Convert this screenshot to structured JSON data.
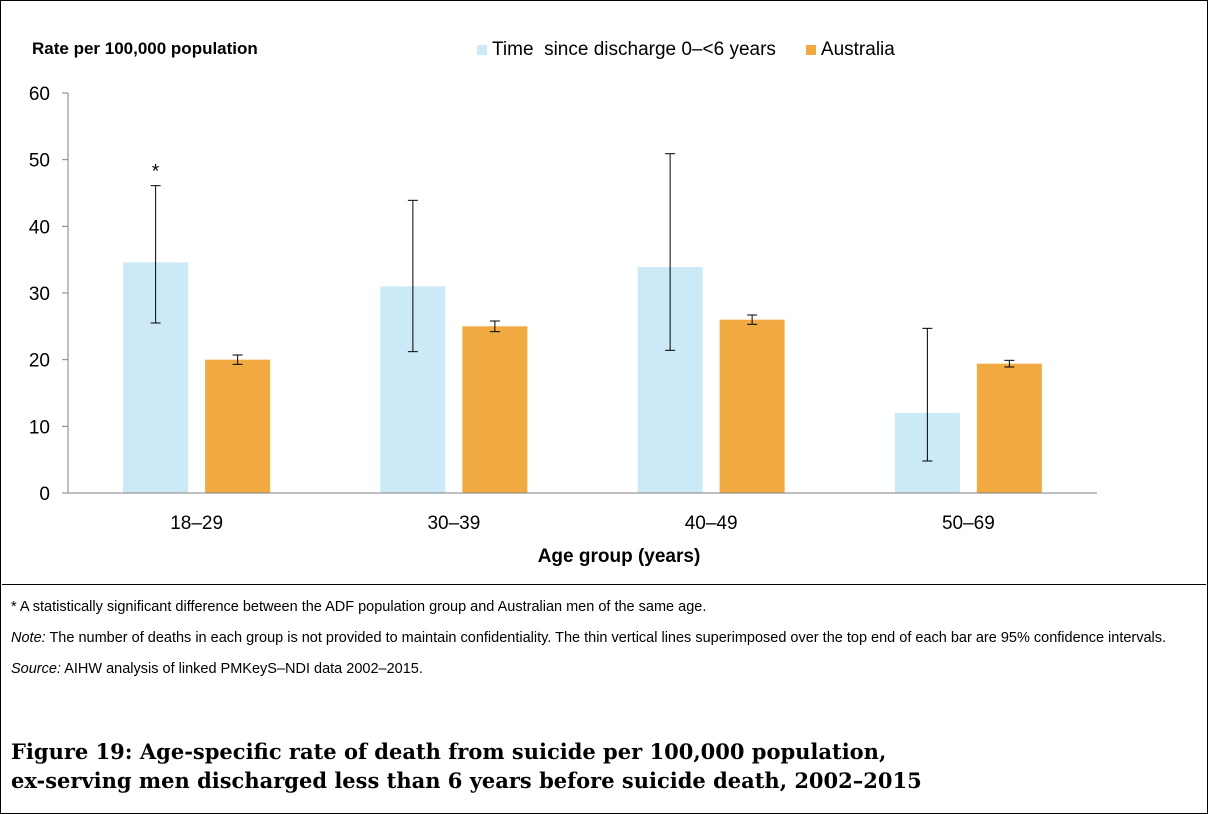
{
  "chart_data": {
    "type": "bar",
    "title": "",
    "ylabel": "Rate per 100,000 population",
    "xlabel": "Age group (years)",
    "ylim": [
      0,
      60
    ],
    "yticks": [
      0,
      10,
      20,
      30,
      40,
      50,
      60
    ],
    "grid": false,
    "legend_position": "top",
    "categories": [
      "18–29",
      "30–39",
      "40–49",
      "50–69"
    ],
    "series": [
      {
        "name": "Time  since discharge 0–<6 years",
        "color": "#cce9f7",
        "values": [
          34.6,
          31.0,
          33.9,
          12.0
        ],
        "ci_low": [
          25.5,
          21.2,
          21.4,
          4.8
        ],
        "ci_high": [
          46.1,
          43.9,
          50.9,
          24.7
        ]
      },
      {
        "name": "Australia",
        "color": "#f0aa41",
        "values": [
          20.0,
          25.0,
          26.0,
          19.4
        ],
        "ci_low": [
          19.3,
          24.2,
          25.3,
          18.9
        ],
        "ci_high": [
          20.7,
          25.8,
          26.7,
          19.9
        ]
      }
    ],
    "annotations": [
      {
        "category": "18–29",
        "series": 0,
        "text": "*"
      }
    ]
  },
  "notes": {
    "significance": "* A statistically significant difference between the ADF population group and Australian men of the same age.",
    "note_label": "Note:",
    "note_text": " The number of deaths in each group is not provided to maintain confidentiality. The thin vertical lines superimposed over the top end of each bar are 95% confidence intervals.",
    "source_label": "Source:",
    "source_text": " AIHW analysis of linked PMKeyS–NDI data 2002–2015."
  },
  "caption": {
    "line1": "Figure 19: Age-specific rate of death from suicide per 100,000 population,",
    "line2": "ex-serving men discharged less than 6 years before suicide death, 2002–2015"
  }
}
